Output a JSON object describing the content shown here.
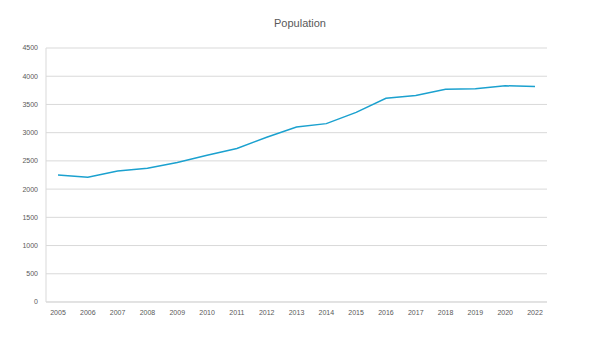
{
  "chart_data": {
    "type": "line",
    "title": "Population",
    "categories": [
      "2005",
      "2006",
      "2007",
      "2008",
      "2009",
      "2010",
      "2011",
      "2012",
      "2013",
      "2014",
      "2015",
      "2016",
      "2017",
      "2018",
      "2019",
      "2020",
      "2022"
    ],
    "values": [
      2250,
      2210,
      2320,
      2370,
      2470,
      2600,
      2720,
      2920,
      3100,
      3160,
      3360,
      3610,
      3660,
      3770,
      3780,
      3830,
      3820
    ],
    "color": "#1ba1cf",
    "ylim": [
      0,
      4500
    ],
    "yticks": [
      0,
      500,
      1000,
      1500,
      2000,
      2500,
      3000,
      3500,
      4000,
      4500
    ],
    "grid": true
  }
}
